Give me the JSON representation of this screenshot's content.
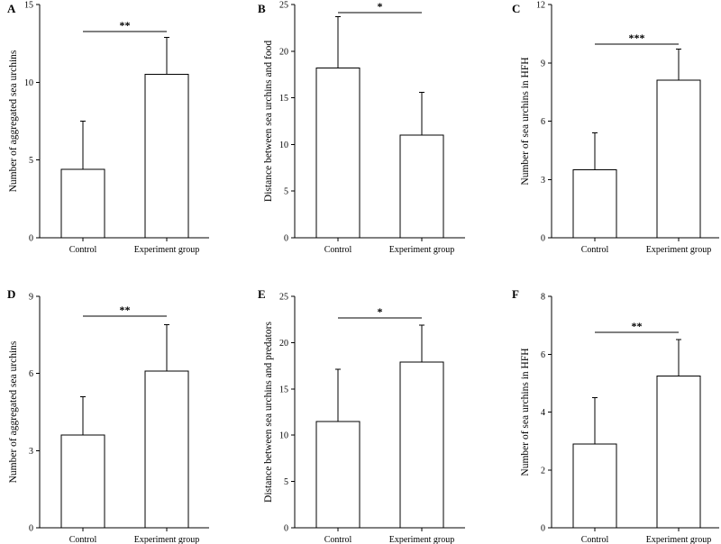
{
  "chart_data": [
    {
      "type": "bar",
      "panel_label": "A",
      "categories": [
        "Control",
        "Experiment group"
      ],
      "values": [
        4.4,
        10.5
      ],
      "error_upper": [
        7.5,
        12.9
      ],
      "ylabel": "Number of aggregated sea urchins",
      "ylim": [
        0,
        15
      ],
      "yticks": [
        "0",
        "5",
        "10",
        "15"
      ],
      "significance": "**"
    },
    {
      "type": "bar",
      "panel_label": "B",
      "categories": [
        "Control",
        "Experiment group"
      ],
      "values": [
        18.2,
        11.0
      ],
      "error_upper": [
        23.7,
        15.6
      ],
      "ylabel": "Distance between sea urchins and food",
      "ylim": [
        0,
        25
      ],
      "yticks": [
        "0",
        "5",
        "10",
        "15",
        "20",
        "25"
      ],
      "significance": "*"
    },
    {
      "type": "bar",
      "panel_label": "C",
      "categories": [
        "Control",
        "Experiment group"
      ],
      "values": [
        3.5,
        8.1
      ],
      "error_upper": [
        5.4,
        9.7
      ],
      "ylabel": "Number of sea urchins in HFH",
      "ylim": [
        0,
        12
      ],
      "yticks": [
        "0",
        "3",
        "6",
        "9",
        "12"
      ],
      "significance": "***"
    },
    {
      "type": "bar",
      "panel_label": "D",
      "categories": [
        "Control",
        "Experiment group"
      ],
      "values": [
        3.6,
        6.1
      ],
      "error_upper": [
        5.1,
        7.9
      ],
      "ylabel": "Number of aggregated sea urchins",
      "ylim": [
        0,
        9
      ],
      "yticks": [
        "0",
        "3",
        "6",
        "9"
      ],
      "significance": "**"
    },
    {
      "type": "bar",
      "panel_label": "E",
      "categories": [
        "Control",
        "Experiment group"
      ],
      "values": [
        11.5,
        17.9
      ],
      "error_upper": [
        17.1,
        21.9
      ],
      "ylabel": "Distance between sea urchins and predators",
      "ylim": [
        0,
        25
      ],
      "yticks": [
        "0",
        "5",
        "10",
        "15",
        "20",
        "25"
      ],
      "significance": "*"
    },
    {
      "type": "bar",
      "panel_label": "F",
      "categories": [
        "Control",
        "Experiment group"
      ],
      "values": [
        2.9,
        5.25
      ],
      "error_upper": [
        4.5,
        6.5
      ],
      "ylabel": "Number of sea urchins in HFH",
      "ylim": [
        0,
        8
      ],
      "yticks": [
        "0",
        "2",
        "4",
        "6",
        "8"
      ],
      "significance": "**"
    }
  ]
}
